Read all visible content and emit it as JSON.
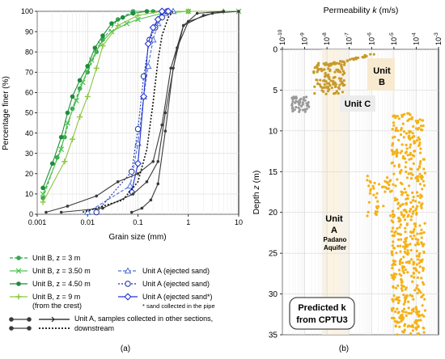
{
  "panel_a": {
    "label": "(a)",
    "chart_data": {
      "type": "line",
      "xlabel": "Grain size (mm)",
      "ylabel": "Percentage finer (%)",
      "x_scale": "log",
      "xlim": [
        0.001,
        10
      ],
      "ylim": [
        0,
        100
      ],
      "x_ticks": [
        "0.001",
        "0.01",
        "0.1",
        "1",
        "10"
      ],
      "y_ticks": [
        "0",
        "10",
        "20",
        "30",
        "40",
        "50",
        "60",
        "70",
        "80",
        "90",
        "100"
      ],
      "series": [
        {
          "name": "Unit B, z = 3 m",
          "color": "#34a853",
          "dash": "4,2",
          "marker": "dot",
          "x": [
            0.0013,
            0.0025,
            0.0035,
            0.005,
            0.007,
            0.01,
            0.015,
            0.02,
            0.04,
            0.08,
            0.2,
            1
          ],
          "y": [
            8,
            28,
            38,
            52,
            62,
            70,
            80,
            86,
            96,
            100,
            100,
            100
          ]
        },
        {
          "name": "Unit B, z = 3.50 m",
          "color": "#4fc24f",
          "dash": "",
          "marker": "x",
          "x": [
            0.0013,
            0.003,
            0.004,
            0.006,
            0.008,
            0.012,
            0.018,
            0.03,
            0.06,
            0.1,
            0.3,
            1,
            10
          ],
          "y": [
            10,
            32,
            45,
            56,
            65,
            76,
            84,
            90,
            94,
            96,
            99,
            100,
            100
          ]
        },
        {
          "name": "Unit B, z = 4.50 m",
          "color": "#1e8c3a",
          "dash": "",
          "marker": "dot",
          "x": [
            0.0013,
            0.002,
            0.003,
            0.004,
            0.005,
            0.007,
            0.01,
            0.014,
            0.02,
            0.03,
            0.05,
            0.08,
            0.15,
            0.3
          ],
          "y": [
            13,
            25,
            38,
            50,
            58,
            66,
            73,
            82,
            88,
            94,
            97,
            99,
            100,
            100
          ]
        },
        {
          "name": "Unit B, z = 9 m (from the crest)",
          "color": "#8cc63f",
          "dash": "",
          "marker": "plus",
          "x": [
            0.0013,
            0.0035,
            0.005,
            0.007,
            0.01,
            0.015,
            0.02,
            0.04,
            0.1,
            0.3,
            1,
            5
          ],
          "y": [
            6,
            26,
            37,
            48,
            58,
            72,
            83,
            93,
            98,
            100,
            100,
            100
          ]
        },
        {
          "name": "Unit A (ejected sand)",
          "color": "#4a6fd6",
          "dash": "4,2",
          "marker": "triangle",
          "x": [
            0.01,
            0.07,
            0.1,
            0.13,
            0.16,
            0.2,
            0.25,
            0.35,
            0.5
          ],
          "y": [
            1,
            14,
            35,
            58,
            73,
            86,
            94,
            99,
            100
          ]
        },
        {
          "name": "Unit A (ejected sand)",
          "color": "#1a2fa0",
          "dash": "2,2",
          "marker": "circle",
          "x": [
            0.015,
            0.075,
            0.1,
            0.13,
            0.17,
            0.22,
            0.3,
            0.38
          ],
          "y": [
            1,
            21,
            42,
            68,
            86,
            92,
            97,
            100
          ]
        },
        {
          "name": "Unit A (ejected sand*)",
          "color": "#2433d6",
          "dash": "",
          "marker": "diamond",
          "x": [
            0.075,
            0.1,
            0.13,
            0.16,
            0.2,
            0.25,
            0.3,
            0.4
          ],
          "y": [
            11,
            25,
            58,
            84,
            92,
            96,
            100,
            100
          ]
        },
        {
          "name": "Unit A, samples collected in other sections, downstream",
          "color": "#3a3a3a",
          "dash": "",
          "marker": "smalldot",
          "x": [
            0.0015,
            0.004,
            0.015,
            0.04,
            0.1,
            0.2,
            0.3,
            0.45,
            0.8,
            2,
            5
          ],
          "y": [
            1,
            4,
            9,
            16,
            20,
            26,
            44,
            72,
            93,
            98,
            100
          ]
        },
        {
          "name": "",
          "color": "#3a3a3a",
          "dash": "",
          "marker": "smalldot",
          "x": [
            0.003,
            0.02,
            0.08,
            0.15,
            0.25,
            0.35,
            0.6,
            1,
            3,
            10
          ],
          "y": [
            1,
            3,
            10,
            16,
            26,
            50,
            82,
            95,
            99,
            100
          ]
        },
        {
          "name": "",
          "color": "#3a3a3a",
          "dash": "",
          "marker": "smalldot",
          "x": [
            0.075,
            0.12,
            0.18,
            0.25,
            0.35,
            0.5,
            0.8,
            1.5,
            5
          ],
          "y": [
            1,
            3,
            7,
            15,
            41,
            72,
            93,
            99,
            100
          ]
        },
        {
          "name": "",
          "color": "#111111",
          "dash": "2,2",
          "marker": "none",
          "x": [
            0.008,
            0.05,
            0.1,
            0.15,
            0.2,
            0.25,
            0.3,
            0.4,
            0.5
          ],
          "y": [
            1,
            7,
            16,
            32,
            55,
            76,
            88,
            97,
            100
          ]
        }
      ]
    },
    "legend": {
      "col1": [
        "Unit B, z = 3 m",
        "Unit B, z = 3.50 m",
        "Unit B, z = 4.50 m",
        "Unit B, z = 9 m",
        "(from the crest)"
      ],
      "col2": [
        "Unit A (ejected sand)",
        "Unit A (ejected sand)",
        "Unit A (ejected sand*)",
        "* sand collected in the pipe"
      ],
      "bottom": [
        "Unit A, samples collected in other sections,",
        "downstream"
      ]
    }
  },
  "panel_b": {
    "label": "(b)",
    "chart_data": {
      "type": "scatter",
      "xlabel_main": "Permeability ",
      "xlabel_k": "k",
      "xlabel_unit": " (m/s)",
      "ylabel_main": "Depth ",
      "ylabel_k": "z",
      "ylabel_unit": " (m)",
      "x_scale": "log",
      "xlim": [
        1e-10,
        0.001
      ],
      "ylim": [
        35,
        0
      ],
      "x_tick_exps": [
        "-10",
        "-9",
        "-8",
        "-7",
        "-6",
        "-5",
        "-4",
        "-3"
      ],
      "y_ticks": [
        "0",
        "5",
        "10",
        "15",
        "20",
        "25",
        "30",
        "35"
      ],
      "grid": true,
      "series": [
        {
          "color": "#c79a2b",
          "clusters": [
            {
              "depth": [
                0.6,
                2.0
              ],
              "logk": [
                -8.2,
                -5.8
              ],
              "n": 40
            },
            {
              "depth": [
                1.5,
                5.5
              ],
              "logk": [
                -8.6,
                -7.2
              ],
              "n": 110
            }
          ]
        },
        {
          "color": "#9a9a9a",
          "clusters": [
            {
              "depth": [
                5.8,
                7.8
              ],
              "logk": [
                -9.6,
                -8.8
              ],
              "n": 45
            }
          ]
        },
        {
          "color": "#f5b116",
          "clusters": [
            {
              "depth": [
                7.8,
                35
              ],
              "logk": [
                -5.1,
                -3.6
              ],
              "n": 520
            },
            {
              "depth": [
                15.5,
                20.5
              ],
              "logk": [
                -6.2,
                -5.0
              ],
              "n": 45
            }
          ]
        }
      ],
      "annotations": {
        "unit_b": "Unit B",
        "unit_c": "Unit C",
        "unit_a": "Unit",
        "unit_a_letter": "A",
        "unit_a_sub1": "Padano",
        "unit_a_sub2": "Aquifer",
        "predicted_1": "Predicted k",
        "predicted_2": "from CPTU3"
      }
    }
  }
}
